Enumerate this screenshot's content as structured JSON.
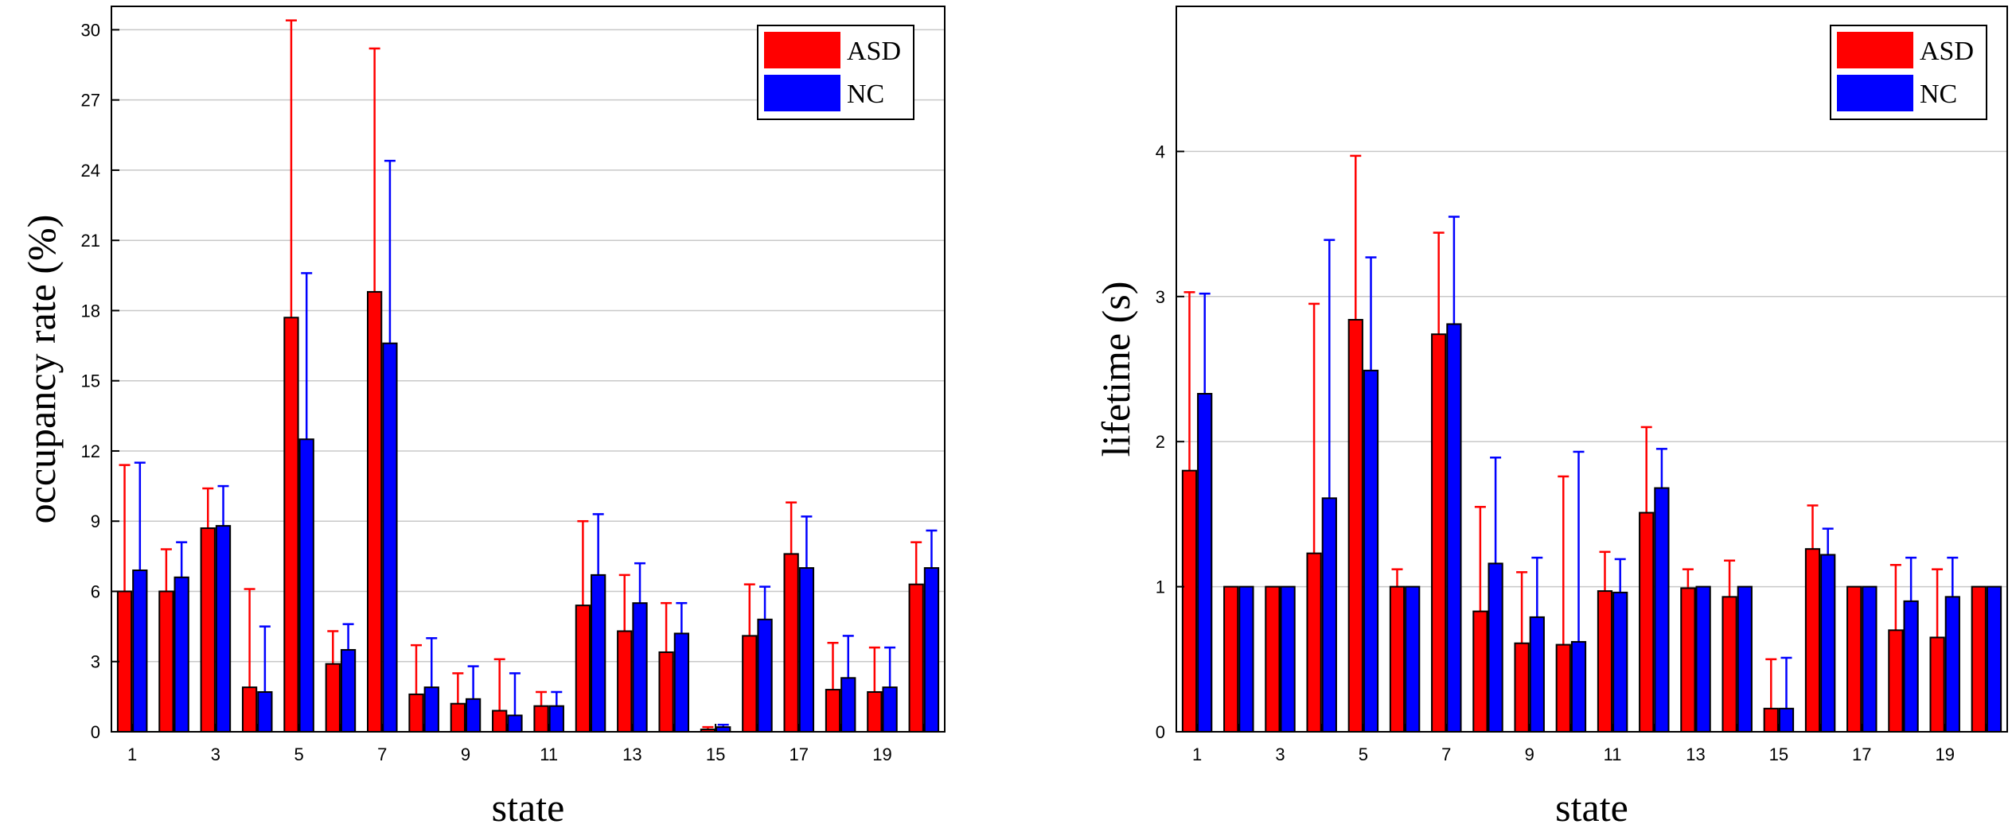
{
  "chart_data": [
    {
      "type": "bar",
      "xlabel": "state",
      "ylabel": "occupancy rate (%)",
      "ylim": [
        0,
        31
      ],
      "yticks": [
        0,
        3,
        6,
        9,
        12,
        15,
        18,
        21,
        24,
        27,
        30
      ],
      "categories": [
        1,
        2,
        3,
        4,
        5,
        6,
        7,
        8,
        9,
        10,
        11,
        12,
        13,
        14,
        15,
        16,
        17,
        18,
        19,
        20
      ],
      "xticks_shown": [
        "1",
        "3",
        "5",
        "7",
        "9",
        "11",
        "13",
        "15",
        "17",
        "19"
      ],
      "grid": "horizontal",
      "legend_position": "top-right",
      "series": [
        {
          "name": "ASD",
          "color": "#ff0000",
          "values": [
            6.0,
            6.0,
            8.7,
            1.9,
            17.7,
            2.9,
            18.8,
            1.6,
            1.2,
            0.9,
            1.1,
            5.4,
            4.3,
            3.4,
            0.1,
            4.1,
            7.6,
            1.8,
            1.7,
            6.3
          ],
          "error_upper": [
            11.4,
            7.8,
            10.4,
            6.1,
            30.4,
            4.3,
            29.2,
            3.7,
            2.5,
            3.1,
            1.7,
            9.0,
            6.7,
            5.5,
            0.2,
            6.3,
            9.8,
            3.8,
            3.6,
            8.1
          ]
        },
        {
          "name": "NC",
          "color": "#0000ff",
          "values": [
            6.9,
            6.6,
            8.8,
            1.7,
            12.5,
            3.5,
            16.6,
            1.9,
            1.4,
            0.7,
            1.1,
            6.7,
            5.5,
            4.2,
            0.2,
            4.8,
            7.0,
            2.3,
            1.9,
            7.0
          ],
          "error_upper": [
            11.5,
            8.1,
            10.5,
            4.5,
            19.6,
            4.6,
            24.4,
            4.0,
            2.8,
            2.5,
            1.7,
            9.3,
            7.2,
            5.5,
            0.3,
            6.2,
            9.2,
            4.1,
            3.6,
            8.6
          ]
        }
      ]
    },
    {
      "type": "bar",
      "xlabel": "state",
      "ylabel": "lifetime (s)",
      "ylim": [
        0,
        5
      ],
      "yticks": [
        0,
        1,
        2,
        3,
        4
      ],
      "categories": [
        1,
        2,
        3,
        4,
        5,
        6,
        7,
        8,
        9,
        10,
        11,
        12,
        13,
        14,
        15,
        16,
        17,
        18,
        19,
        20
      ],
      "xticks_shown": [
        "1",
        "3",
        "5",
        "7",
        "9",
        "11",
        "13",
        "15",
        "17",
        "19"
      ],
      "grid": "horizontal",
      "legend_position": "top-right",
      "series": [
        {
          "name": "ASD",
          "color": "#ff0000",
          "values": [
            1.8,
            1.0,
            1.0,
            1.23,
            2.84,
            1.0,
            2.74,
            0.83,
            0.61,
            0.6,
            0.97,
            1.51,
            0.99,
            0.93,
            0.16,
            1.26,
            1.0,
            0.7,
            0.65,
            1.0
          ],
          "error_upper": [
            3.03,
            1.0,
            1.0,
            2.95,
            3.97,
            1.12,
            3.44,
            1.55,
            1.1,
            1.76,
            1.24,
            2.1,
            1.12,
            1.18,
            0.5,
            1.56,
            1.0,
            1.15,
            1.12,
            1.0
          ]
        },
        {
          "name": "NC",
          "color": "#0000ff",
          "values": [
            2.33,
            1.0,
            1.0,
            1.61,
            2.49,
            1.0,
            2.81,
            1.16,
            0.79,
            0.62,
            0.96,
            1.68,
            1.0,
            1.0,
            0.16,
            1.22,
            1.0,
            0.9,
            0.93,
            1.0
          ],
          "error_upper": [
            3.02,
            1.0,
            1.0,
            3.39,
            3.27,
            1.0,
            3.55,
            1.89,
            1.2,
            1.93,
            1.19,
            1.95,
            1.0,
            1.0,
            0.51,
            1.4,
            1.0,
            1.2,
            1.2,
            1.0
          ]
        }
      ]
    }
  ]
}
